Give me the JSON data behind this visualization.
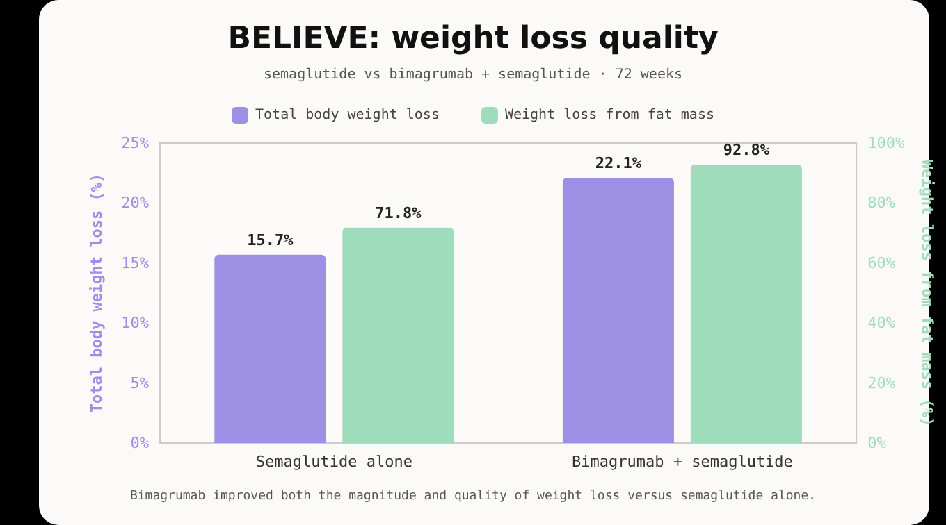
{
  "chart_data": {
    "type": "bar",
    "title": "BELIEVE: weight loss quality",
    "subtitle": "semaglutide vs bimagrumab + semaglutide · 72 weeks",
    "categories": [
      "Semaglutide alone",
      "Bimagrumab + semaglutide"
    ],
    "series": [
      {
        "name": "Total body weight loss",
        "color": "#9d8fe3",
        "values": [
          15.7,
          22.1
        ],
        "value_labels": [
          "15.7%",
          "22.1%"
        ]
      },
      {
        "name": "Weight loss from fat mass",
        "color": "#9fdcbc",
        "values": [
          71.8,
          92.8
        ],
        "value_labels": [
          "71.8%",
          "92.8%"
        ],
        "axis": "y2"
      }
    ],
    "ylabel": "Total body weight loss (%)",
    "y2label": "Weight loss from fat mass (%)",
    "ylim": [
      0,
      25
    ],
    "yticks": [
      {
        "value": 0,
        "label": "0%"
      },
      {
        "value": 5,
        "label": "5%"
      },
      {
        "value": 10,
        "label": "10%"
      },
      {
        "value": 15,
        "label": "15%"
      },
      {
        "value": 20,
        "label": "20%"
      },
      {
        "value": 25,
        "label": "25%"
      }
    ],
    "y2lim": [
      0,
      100
    ],
    "y2ticks": [
      {
        "value": 0,
        "label": "0%"
      },
      {
        "value": 20,
        "label": "20%"
      },
      {
        "value": 40,
        "label": "40%"
      },
      {
        "value": 60,
        "label": "60%"
      },
      {
        "value": 80,
        "label": "80%"
      },
      {
        "value": 100,
        "label": "100%"
      }
    ],
    "legend": "top",
    "grid": false,
    "annotations": [
      "Bimagrumab improved both the magnitude and quality of weight loss versus semaglutide alone."
    ]
  }
}
